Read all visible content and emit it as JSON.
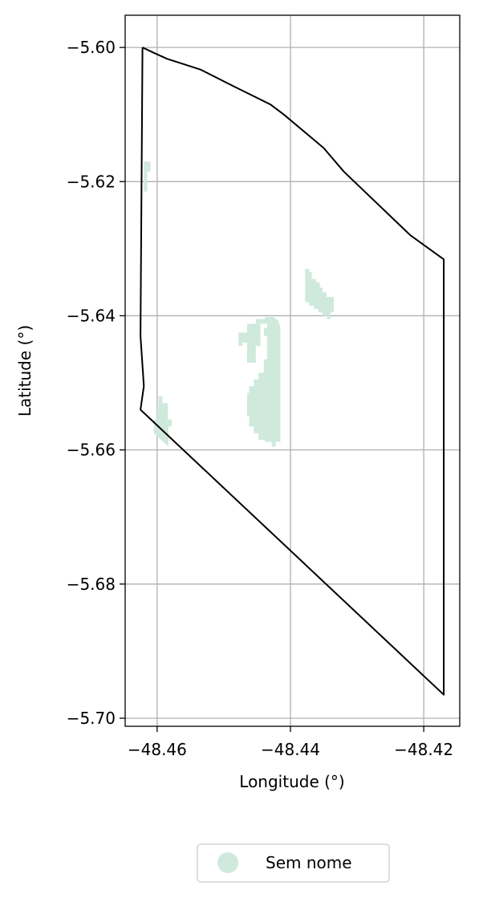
{
  "chart_data": {
    "type": "map",
    "title": "",
    "xlabel": "Longitude (°)",
    "ylabel": "Latitude (°)",
    "xlim": [
      -48.4648,
      -48.4146
    ],
    "ylim": [
      -5.7012,
      -5.5952
    ],
    "xticks": [
      -48.46,
      -48.44,
      -48.42
    ],
    "yticks": [
      -5.6,
      -5.62,
      -5.64,
      -5.66,
      -5.68,
      -5.7
    ],
    "xtick_labels": [
      "−48.46",
      "−48.44",
      "−48.42"
    ],
    "ytick_labels": [
      "−5.60",
      "−5.62",
      "−5.64",
      "−5.66",
      "−5.68",
      "−5.70"
    ],
    "grid": true,
    "boundary_color": "#000000",
    "boundary": [
      [
        -48.4622,
        -5.6
      ],
      [
        -48.4605,
        -5.6008
      ],
      [
        -48.4585,
        -5.6017
      ],
      [
        -48.4535,
        -5.6033
      ],
      [
        -48.4485,
        -5.6058
      ],
      [
        -48.443,
        -5.6085
      ],
      [
        -48.441,
        -5.61
      ],
      [
        -48.435,
        -5.615
      ],
      [
        -48.432,
        -5.6185
      ],
      [
        -48.422,
        -5.628
      ],
      [
        -48.417,
        -5.6316
      ],
      [
        -48.417,
        -5.6965
      ],
      [
        -48.4625,
        -5.654
      ],
      [
        -48.462,
        -5.6505
      ],
      [
        -48.4625,
        -5.643
      ],
      [
        -48.4622,
        -5.6
      ]
    ],
    "series": [
      {
        "name": "Sem nome",
        "color": "#cfeadc",
        "polygons": [
          [
            [
              -48.462,
              -5.617
            ],
            [
              -48.461,
              -5.617
            ],
            [
              -48.461,
              -5.6185
            ],
            [
              -48.4615,
              -5.6185
            ],
            [
              -48.4615,
              -5.6215
            ],
            [
              -48.462,
              -5.6215
            ]
          ],
          [
            [
              -48.4598,
              -5.652
            ],
            [
              -48.4592,
              -5.652
            ],
            [
              -48.4592,
              -5.653
            ],
            [
              -48.4584,
              -5.653
            ],
            [
              -48.4584,
              -5.6555
            ],
            [
              -48.4578,
              -5.6555
            ],
            [
              -48.4578,
              -5.6565
            ],
            [
              -48.4583,
              -5.6565
            ],
            [
              -48.4583,
              -5.6595
            ],
            [
              -48.4605,
              -5.6575
            ],
            [
              -48.4605,
              -5.6555
            ],
            [
              -48.46,
              -5.6555
            ],
            [
              -48.46,
              -5.6535
            ],
            [
              -48.4598,
              -5.6535
            ]
          ],
          [
            [
              -48.4438,
              -5.6402
            ],
            [
              -48.4425,
              -5.6402
            ],
            [
              -48.4418,
              -5.6408
            ],
            [
              -48.4415,
              -5.6418
            ],
            [
              -48.4415,
              -5.6588
            ],
            [
              -48.4422,
              -5.6588
            ],
            [
              -48.4422,
              -5.6595
            ],
            [
              -48.4428,
              -5.6595
            ],
            [
              -48.4428,
              -5.6588
            ],
            [
              -48.4438,
              -5.6588
            ],
            [
              -48.4438,
              -5.6585
            ],
            [
              -48.4448,
              -5.6585
            ],
            [
              -48.4448,
              -5.6575
            ],
            [
              -48.4455,
              -5.6575
            ],
            [
              -48.4455,
              -5.6565
            ],
            [
              -48.4462,
              -5.6565
            ],
            [
              -48.4462,
              -5.655
            ],
            [
              -48.4465,
              -5.655
            ],
            [
              -48.4465,
              -5.6515
            ],
            [
              -48.4462,
              -5.6515
            ],
            [
              -48.4462,
              -5.6505
            ],
            [
              -48.4455,
              -5.6505
            ],
            [
              -48.4455,
              -5.6495
            ],
            [
              -48.4448,
              -5.6495
            ],
            [
              -48.4448,
              -5.6485
            ],
            [
              -48.444,
              -5.6485
            ],
            [
              -48.444,
              -5.6465
            ],
            [
              -48.4435,
              -5.6465
            ],
            [
              -48.4435,
              -5.643
            ],
            [
              -48.444,
              -5.643
            ],
            [
              -48.444,
              -5.6418
            ],
            [
              -48.4435,
              -5.6418
            ],
            [
              -48.4435,
              -5.6412
            ],
            [
              -48.4445,
              -5.6412
            ],
            [
              -48.4445,
              -5.6445
            ],
            [
              -48.4452,
              -5.6445
            ],
            [
              -48.4452,
              -5.647
            ],
            [
              -48.4465,
              -5.647
            ],
            [
              -48.4465,
              -5.644
            ],
            [
              -48.4472,
              -5.644
            ],
            [
              -48.4472,
              -5.6445
            ],
            [
              -48.4478,
              -5.6445
            ],
            [
              -48.4478,
              -5.6425
            ],
            [
              -48.4465,
              -5.6425
            ],
            [
              -48.4465,
              -5.6412
            ],
            [
              -48.4452,
              -5.6412
            ],
            [
              -48.4452,
              -5.6405
            ],
            [
              -48.4438,
              -5.6405
            ]
          ],
          [
            [
              -48.4378,
              -5.633
            ],
            [
              -48.4372,
              -5.633
            ],
            [
              -48.4372,
              -5.6335
            ],
            [
              -48.4368,
              -5.6335
            ],
            [
              -48.4368,
              -5.6345
            ],
            [
              -48.4362,
              -5.6345
            ],
            [
              -48.4362,
              -5.635
            ],
            [
              -48.4356,
              -5.635
            ],
            [
              -48.4356,
              -5.6358
            ],
            [
              -48.4352,
              -5.6358
            ],
            [
              -48.4352,
              -5.6365
            ],
            [
              -48.4346,
              -5.6365
            ],
            [
              -48.4346,
              -5.6372
            ],
            [
              -48.4335,
              -5.6372
            ],
            [
              -48.4335,
              -5.6395
            ],
            [
              -48.434,
              -5.6395
            ],
            [
              -48.434,
              -5.6405
            ],
            [
              -48.4345,
              -5.6405
            ],
            [
              -48.4345,
              -5.64
            ],
            [
              -48.4352,
              -5.64
            ],
            [
              -48.4352,
              -5.6395
            ],
            [
              -48.4358,
              -5.6395
            ],
            [
              -48.4358,
              -5.639
            ],
            [
              -48.4365,
              -5.639
            ],
            [
              -48.4365,
              -5.6385
            ],
            [
              -48.4372,
              -5.6385
            ],
            [
              -48.4372,
              -5.638
            ],
            [
              -48.4378,
              -5.638
            ]
          ]
        ]
      }
    ],
    "legend": {
      "position": "bottom-center",
      "entries": [
        {
          "label": "Sem nome",
          "color": "#cfeadc"
        }
      ]
    }
  }
}
